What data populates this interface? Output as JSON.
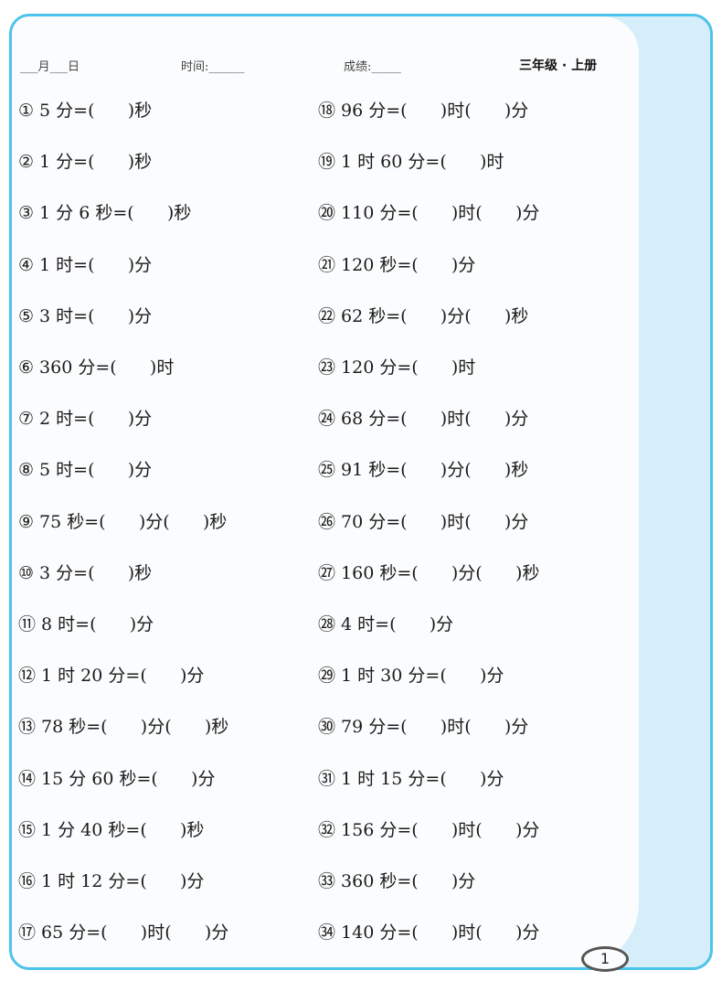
{
  "header": {
    "date_label": "___月___日",
    "time_label": "时间:______",
    "score_label": "成绩:_____",
    "grade": "三年级 · 上册"
  },
  "left_items": [
    {
      "num": "①",
      "text": "5 分=(      )秒"
    },
    {
      "num": "②",
      "text": "1 分=(      )秒"
    },
    {
      "num": "③",
      "text": "1 分 6 秒=(      )秒"
    },
    {
      "num": "④",
      "text": "1 时=(      )分"
    },
    {
      "num": "⑤",
      "text": "3 时=(      )分"
    },
    {
      "num": "⑥",
      "text": "360 分=(      )时"
    },
    {
      "num": "⑦",
      "text": "2 时=(      )分"
    },
    {
      "num": "⑧",
      "text": "5 时=(      )分"
    },
    {
      "num": "⑨",
      "text": "75 秒=(      )分(      )秒"
    },
    {
      "num": "⑩",
      "text": "3 分=(      )秒"
    },
    {
      "num": "⑪",
      "text": "8 时=(      )分"
    },
    {
      "num": "⑫",
      "text": "1 时 20 分=(      )分"
    },
    {
      "num": "⑬",
      "text": "78 秒=(      )分(      )秒"
    },
    {
      "num": "⑭",
      "text": "15 分 60 秒=(      )分"
    },
    {
      "num": "⑮",
      "text": "1 分 40 秒=(      )秒"
    },
    {
      "num": "⑯",
      "text": "1 时 12 分=(      )分"
    },
    {
      "num": "⑰",
      "text": "65 分=(      )时(      )分"
    }
  ],
  "right_items": [
    {
      "num": "⑱",
      "text": "96 分=(      )时(      )分"
    },
    {
      "num": "⑲",
      "text": "1 时 60 分=(      )时"
    },
    {
      "num": "⑳",
      "text": "110 分=(      )时(      )分"
    },
    {
      "num": "㉑",
      "text": "120 秒=(      )分"
    },
    {
      "num": "㉒",
      "text": "62 秒=(      )分(      )秒"
    },
    {
      "num": "㉓",
      "text": "120 分=(      )时"
    },
    {
      "num": "㉔",
      "text": "68 分=(      )时(      )分"
    },
    {
      "num": "㉕",
      "text": "91 秒=(      )分(      )秒"
    },
    {
      "num": "㉖",
      "text": "70 分=(      )时(      )分"
    },
    {
      "num": "㉗",
      "text": "160 秒=(      )分(      )秒"
    },
    {
      "num": "㉘",
      "text": "4 时=(      )分"
    },
    {
      "num": "㉙",
      "text": "1 时 30 分=(      )分"
    },
    {
      "num": "㉚",
      "text": "79 分=(      )时(      )分"
    },
    {
      "num": "㉛",
      "text": "1 时 15 分=(      )分"
    },
    {
      "num": "㉜",
      "text": "156 分=(      )时(      )分"
    },
    {
      "num": "㉝",
      "text": "360 秒=(      )分"
    },
    {
      "num": "㉞",
      "text": "140 分=(      )时(      )分"
    }
  ],
  "page_number": "1"
}
